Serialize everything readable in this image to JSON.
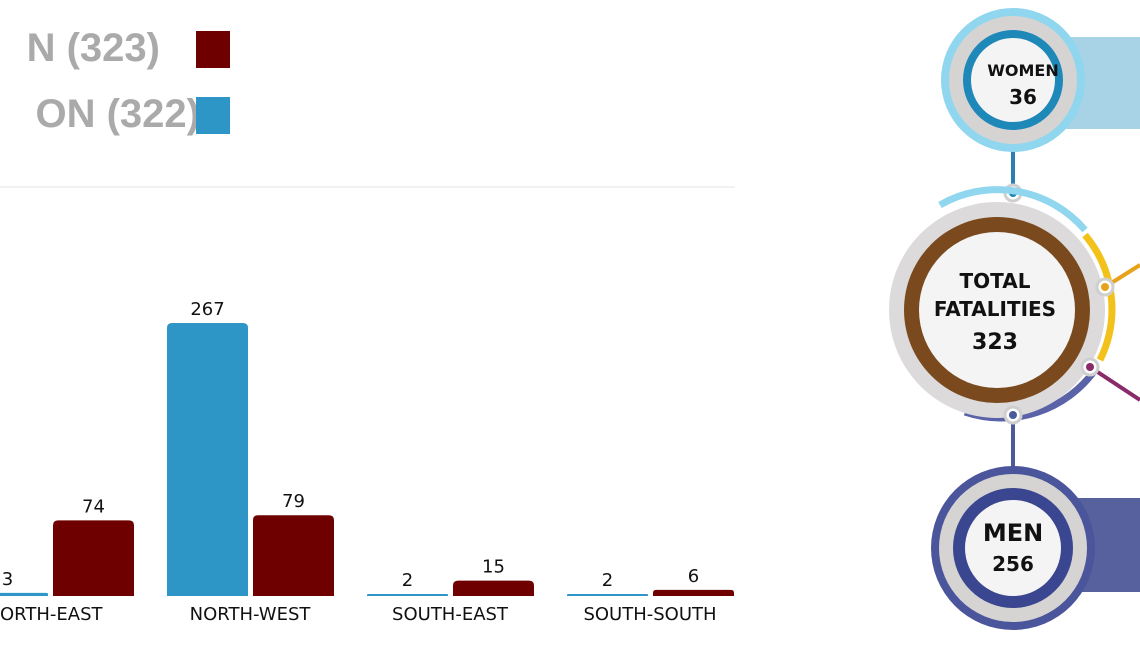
{
  "chart_data": {
    "type": "bar",
    "categories": [
      "ORTH-EAST",
      "NORTH-WEST",
      "SOUTH-EAST",
      "SOUTH-SOUTH"
    ],
    "series": [
      {
        "name": "ON (322)",
        "color": "#2e95c7",
        "values": [
          3,
          267,
          2,
          2
        ]
      },
      {
        "name": "N (323)",
        "color": "#6e0000",
        "values": [
          74,
          79,
          15,
          6
        ]
      }
    ],
    "ylim": [
      0,
      280
    ]
  },
  "infographic": {
    "women": {
      "label": "WOMEN",
      "value": "36"
    },
    "total": {
      "label_1": "TOTAL",
      "label_2": "FATALITIES",
      "value": "323"
    },
    "men": {
      "label": "MEN",
      "value": "256"
    }
  }
}
